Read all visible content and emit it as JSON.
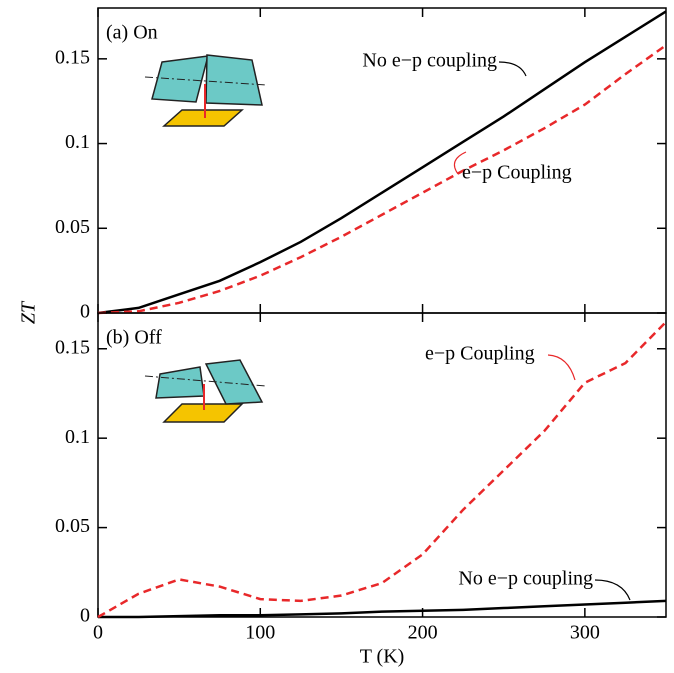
{
  "chart_data": [
    {
      "type": "line",
      "title": "(a) On",
      "ylabel": "ZT",
      "x": [
        0,
        25,
        50,
        75,
        100,
        125,
        150,
        175,
        200,
        225,
        250,
        275,
        300,
        325,
        350
      ],
      "series": [
        {
          "name": "No e−p coupling",
          "color": "#000000",
          "style": "solid",
          "values": [
            0,
            0.003,
            0.011,
            0.019,
            0.03,
            0.042,
            0.056,
            0.071,
            0.086,
            0.101,
            0.116,
            0.132,
            0.148,
            0.163,
            0.178
          ]
        },
        {
          "name": "e−p Coupling",
          "color": "#e8282a",
          "style": "dashed",
          "values": [
            0,
            0.001,
            0.006,
            0.013,
            0.022,
            0.033,
            0.045,
            0.058,
            0.071,
            0.084,
            0.096,
            0.109,
            0.123,
            0.141,
            0.158
          ]
        }
      ],
      "xlim": [
        0,
        350
      ],
      "ylim": [
        0,
        0.18
      ],
      "yticks": [
        0,
        0.05,
        0.1,
        0.15
      ]
    },
    {
      "type": "line",
      "title": "(b) Off",
      "xlabel": "T  (K)",
      "x": [
        0,
        25,
        50,
        75,
        100,
        125,
        150,
        175,
        200,
        225,
        250,
        275,
        300,
        325,
        350
      ],
      "series": [
        {
          "name": "No e−p coupling",
          "color": "#000000",
          "style": "solid",
          "values": [
            0,
            0,
            0.0005,
            0.001,
            0.001,
            0.0015,
            0.002,
            0.003,
            0.0035,
            0.004,
            0.005,
            0.006,
            0.007,
            0.008,
            0.009
          ]
        },
        {
          "name": "e−p Coupling",
          "color": "#e8282a",
          "style": "dashed",
          "values": [
            0,
            0.013,
            0.021,
            0.017,
            0.01,
            0.009,
            0.012,
            0.019,
            0.035,
            0.06,
            0.082,
            0.104,
            0.131,
            0.142,
            0.165
          ]
        }
      ],
      "xlim": [
        0,
        350
      ],
      "ylim": [
        0,
        0.17
      ],
      "xticks": [
        0,
        100,
        200,
        300
      ],
      "yticks": [
        0,
        0.05,
        0.1,
        0.15
      ]
    }
  ]
}
